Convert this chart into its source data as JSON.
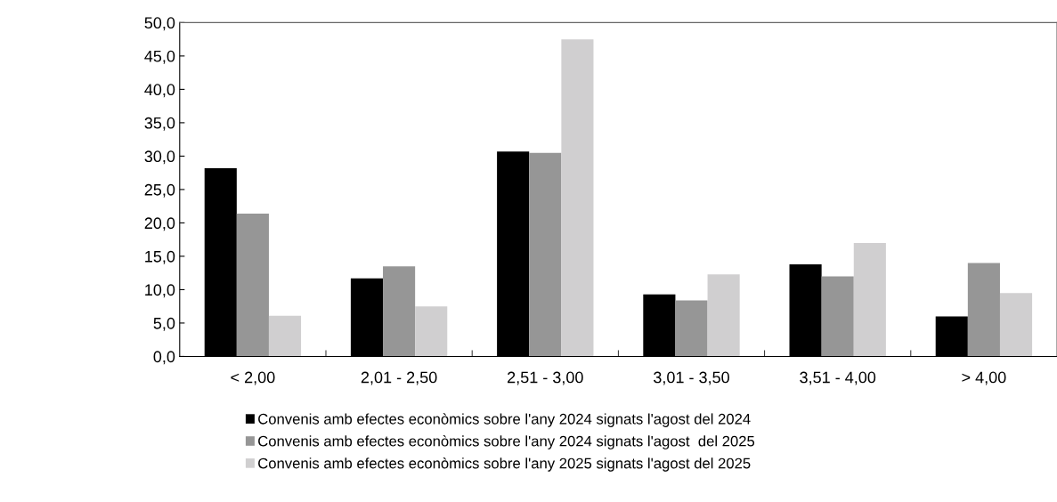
{
  "chart_data": {
    "type": "bar",
    "categories": [
      "< 2,00",
      "2,01 - 2,50",
      "2,51 - 3,00",
      "3,01 - 3,50",
      "3,51 - 4,00",
      "> 4,00"
    ],
    "series": [
      {
        "name": "Convenis amb efectes econòmics sobre l'any 2024 signats l'agost del 2024",
        "color": "#000000",
        "values": [
          28.2,
          11.7,
          30.7,
          9.3,
          13.8,
          6.0
        ]
      },
      {
        "name": "Convenis amb efectes econòmics sobre l'any 2024 signats l'agost  del 2025",
        "color": "#969696",
        "values": [
          21.4,
          13.5,
          30.5,
          8.4,
          12.0,
          14.0
        ]
      },
      {
        "name": "Convenis amb efectes econòmics sobre l'any 2025 signats l'agost del 2025",
        "color": "#d0cfd0",
        "values": [
          6.1,
          7.5,
          47.5,
          12.3,
          17.0,
          9.5
        ]
      }
    ],
    "ylim": [
      0,
      50
    ],
    "yticks": [
      {
        "value": 0,
        "label": "0,0"
      },
      {
        "value": 5,
        "label": "5,0"
      },
      {
        "value": 10,
        "label": "10,0"
      },
      {
        "value": 15,
        "label": "15,0"
      },
      {
        "value": 20,
        "label": "20,0"
      },
      {
        "value": 25,
        "label": "25,0"
      },
      {
        "value": 30,
        "label": "30,0"
      },
      {
        "value": 35,
        "label": "35,0"
      },
      {
        "value": 40,
        "label": "40,0"
      },
      {
        "value": 45,
        "label": "45,0"
      },
      {
        "value": 50,
        "label": "50,0"
      }
    ],
    "grid": false,
    "legend": "bottom"
  }
}
